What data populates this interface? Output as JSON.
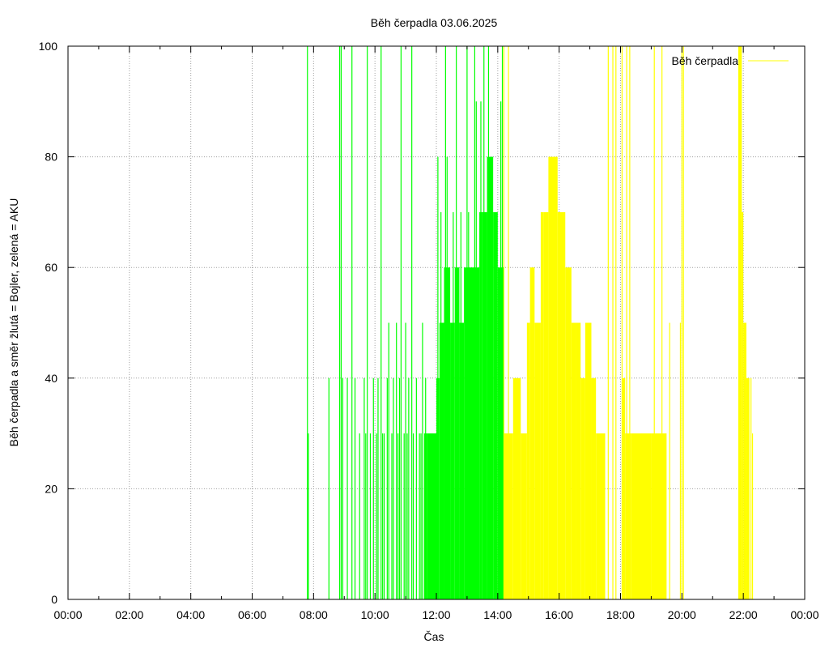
{
  "chart_data": {
    "type": "bar",
    "title": "Běh čerpadla 03.06.2025",
    "xlabel": "Čas",
    "ylabel": "Běh čerpadla a směr žlutá = Bojler, zelená = AKU",
    "xlim": [
      0,
      24
    ],
    "ylim": [
      0,
      100
    ],
    "x_ticks": [
      "00:00",
      "02:00",
      "04:00",
      "06:00",
      "08:00",
      "10:00",
      "12:00",
      "14:00",
      "16:00",
      "18:00",
      "20:00",
      "22:00",
      "00:00"
    ],
    "y_ticks": [
      "0",
      "20",
      "40",
      "60",
      "80",
      "100"
    ],
    "grid": true,
    "legend": {
      "position": "top-right",
      "entries": [
        {
          "label": "Běh čerpadla",
          "color": "#ffff00"
        }
      ]
    },
    "colors": {
      "AKU": "#00ff00",
      "Bojler": "#ffff00"
    },
    "series": [
      {
        "mode": "AKU",
        "color": "#00ff00",
        "spikes": [
          [
            7.8,
            100
          ],
          [
            7.83,
            30
          ],
          [
            8.5,
            40
          ],
          [
            8.85,
            100
          ],
          [
            8.9,
            100
          ],
          [
            8.95,
            40
          ],
          [
            9.1,
            40
          ],
          [
            9.25,
            100
          ],
          [
            9.35,
            40
          ],
          [
            9.5,
            30
          ],
          [
            9.65,
            40
          ],
          [
            9.7,
            30
          ],
          [
            9.75,
            100
          ],
          [
            9.85,
            30
          ],
          [
            9.95,
            40
          ],
          [
            10.05,
            30
          ],
          [
            10.1,
            40
          ],
          [
            10.2,
            100
          ],
          [
            10.25,
            30
          ],
          [
            10.3,
            30
          ],
          [
            10.4,
            40
          ],
          [
            10.45,
            50
          ],
          [
            10.55,
            30
          ],
          [
            10.6,
            40
          ],
          [
            10.7,
            50
          ],
          [
            10.75,
            30
          ],
          [
            10.8,
            40
          ],
          [
            10.85,
            100
          ],
          [
            10.95,
            30
          ],
          [
            11.0,
            50
          ],
          [
            11.05,
            30
          ],
          [
            11.1,
            40
          ],
          [
            11.2,
            100
          ],
          [
            11.25,
            30
          ],
          [
            11.35,
            40
          ],
          [
            11.45,
            30
          ],
          [
            11.5,
            30
          ],
          [
            11.55,
            50
          ],
          [
            11.65,
            40
          ]
        ],
        "blocks": [
          [
            11.6,
            11.7,
            30
          ],
          [
            11.7,
            12.0,
            30
          ],
          [
            12.0,
            12.1,
            40
          ],
          [
            12.1,
            12.25,
            50
          ],
          [
            12.25,
            12.45,
            60
          ],
          [
            12.45,
            12.6,
            50
          ],
          [
            12.6,
            12.75,
            60
          ],
          [
            12.75,
            12.9,
            50
          ],
          [
            12.9,
            13.05,
            60
          ],
          [
            13.05,
            13.2,
            60
          ],
          [
            13.2,
            13.4,
            60
          ],
          [
            13.4,
            13.5,
            70
          ],
          [
            13.5,
            13.65,
            70
          ],
          [
            13.65,
            13.85,
            80
          ],
          [
            13.85,
            14.0,
            70
          ],
          [
            14.0,
            14.2,
            60
          ]
        ],
        "extra_spikes": [
          [
            12.05,
            80
          ],
          [
            12.15,
            70
          ],
          [
            12.3,
            100
          ],
          [
            12.35,
            80
          ],
          [
            12.55,
            70
          ],
          [
            12.65,
            100
          ],
          [
            12.8,
            70
          ],
          [
            13.0,
            100
          ],
          [
            13.05,
            70
          ],
          [
            13.25,
            100
          ],
          [
            13.3,
            90
          ],
          [
            13.45,
            90
          ],
          [
            13.55,
            100
          ],
          [
            13.7,
            100
          ],
          [
            14.1,
            90
          ],
          [
            14.15,
            100
          ]
        ]
      },
      {
        "mode": "Bojler",
        "color": "#ffff00",
        "spikes": [
          [
            14.2,
            100
          ],
          [
            14.35,
            100
          ],
          [
            17.6,
            100
          ],
          [
            17.75,
            100
          ],
          [
            17.85,
            100
          ],
          [
            18.05,
            100
          ],
          [
            18.2,
            100
          ],
          [
            18.3,
            100
          ],
          [
            19.1,
            100
          ],
          [
            19.35,
            100
          ],
          [
            19.6,
            50
          ],
          [
            19.95,
            50
          ],
          [
            20.0,
            100
          ],
          [
            20.05,
            100
          ],
          [
            21.85,
            100
          ]
        ],
        "blocks": [
          [
            14.2,
            14.5,
            30
          ],
          [
            14.5,
            14.75,
            40
          ],
          [
            14.75,
            14.95,
            30
          ],
          [
            14.95,
            15.05,
            50
          ],
          [
            15.05,
            15.2,
            60
          ],
          [
            15.2,
            15.4,
            50
          ],
          [
            15.4,
            15.5,
            70
          ],
          [
            15.5,
            15.65,
            70
          ],
          [
            15.65,
            15.95,
            80
          ],
          [
            15.95,
            16.2,
            70
          ],
          [
            16.2,
            16.4,
            60
          ],
          [
            16.4,
            16.55,
            50
          ],
          [
            16.55,
            16.7,
            50
          ],
          [
            16.7,
            16.85,
            40
          ],
          [
            16.85,
            17.05,
            50
          ],
          [
            17.05,
            17.2,
            40
          ],
          [
            17.2,
            17.5,
            30
          ],
          [
            18.05,
            18.15,
            40
          ],
          [
            18.15,
            18.35,
            30
          ],
          [
            18.35,
            19.0,
            30
          ],
          [
            19.0,
            19.5,
            30
          ],
          [
            21.85,
            21.95,
            100
          ],
          [
            21.95,
            22.0,
            70
          ],
          [
            22.0,
            22.1,
            50
          ],
          [
            22.1,
            22.2,
            40
          ]
        ],
        "extra_spikes": [
          [
            22.25,
            40
          ],
          [
            22.3,
            30
          ]
        ]
      }
    ]
  }
}
